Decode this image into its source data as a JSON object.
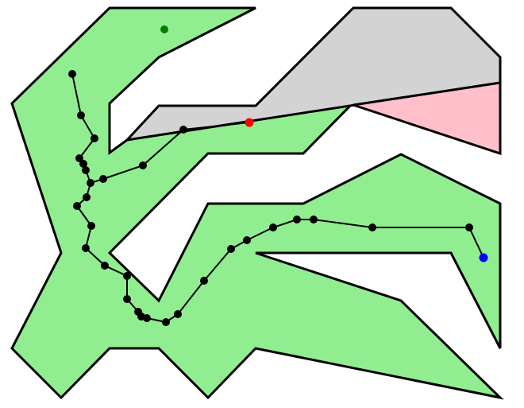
{
  "diagram": {
    "colors": {
      "background": "#ffffff",
      "free_space": "#90ee90",
      "gray_region": "#d3d3d3",
      "pink_region": "#ffc0cb",
      "outline": "#000000",
      "path": "#000000",
      "start_marker": "#008000",
      "red_marker": "#ff0000",
      "goal_marker": "#0000ff"
    },
    "markers": [
      {
        "name": "green-point-marker",
        "color_key": "start_marker"
      },
      {
        "name": "red-point-marker",
        "color_key": "red_marker"
      },
      {
        "name": "blue-point-marker",
        "color_key": "goal_marker"
      }
    ]
  }
}
